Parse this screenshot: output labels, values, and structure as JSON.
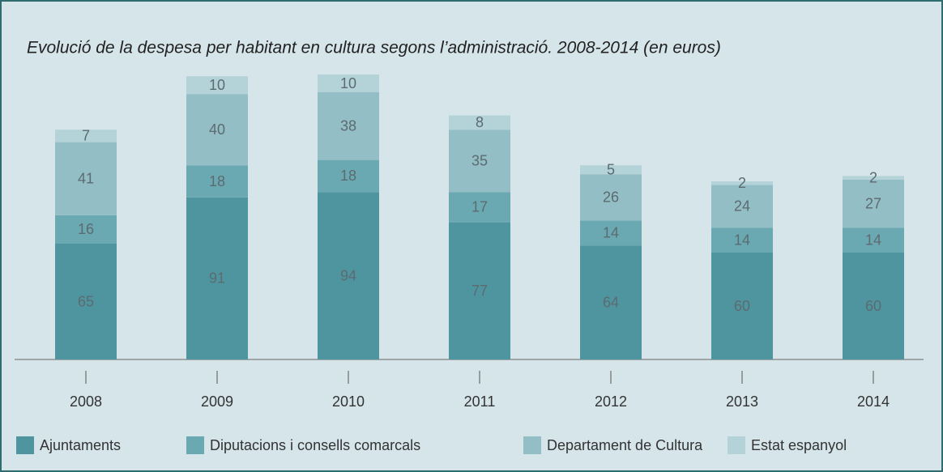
{
  "chart_data": {
    "type": "stacked_bar",
    "title": "Evolució de la despesa per habitant en cultura segons l’administració. 2008-2014 (en euros)",
    "categories": [
      "2008",
      "2009",
      "2010",
      "2011",
      "2012",
      "2013",
      "2014"
    ],
    "series": [
      {
        "name": "Ajuntaments",
        "color": "#4f95a0",
        "values": [
          65,
          91,
          94,
          77,
          64,
          60,
          60
        ]
      },
      {
        "name": "Diputacions i consells comarcals",
        "color": "#6ba9b2",
        "values": [
          16,
          18,
          18,
          17,
          14,
          14,
          14
        ]
      },
      {
        "name": "Departament de Cultura",
        "color": "#93bec5",
        "values": [
          41,
          40,
          38,
          35,
          26,
          24,
          27
        ]
      },
      {
        "name": "Estat espanyol",
        "color": "#b4d3d8",
        "values": [
          7,
          10,
          10,
          8,
          5,
          2,
          2
        ]
      }
    ]
  }
}
